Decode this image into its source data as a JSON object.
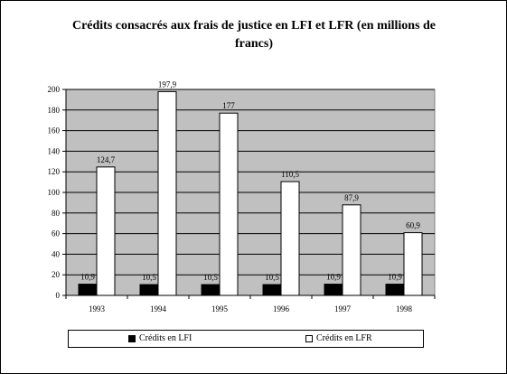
{
  "chart_data": {
    "type": "bar",
    "title": "Crédits consacrés aux frais de justice en LFI et LFR (en millions de francs)",
    "categories": [
      "1993",
      "1994",
      "1995",
      "1996",
      "1997",
      "1998"
    ],
    "series": [
      {
        "name": "Crédits en LFI",
        "values": [
          10.9,
          10.5,
          10.5,
          10.5,
          10.9,
          10.9
        ],
        "labels": [
          "10,9",
          "10,5",
          "10,5",
          "10,5",
          "10,9",
          "10,9"
        ],
        "color": "#000000"
      },
      {
        "name": "Crédits en LFR",
        "values": [
          124.7,
          197.9,
          177,
          110.5,
          87.9,
          60.9
        ],
        "labels": [
          "124,7",
          "197,9",
          "177",
          "110,5",
          "87,9",
          "60,9"
        ],
        "color": "#ffffff"
      }
    ],
    "yticks": [
      "0",
      "20",
      "40",
      "60",
      "80",
      "100",
      "120",
      "140",
      "160",
      "180",
      "200"
    ],
    "ylim": [
      0,
      200
    ],
    "grid": true,
    "plot_background": "#c0c0c0",
    "legend_position": "bottom"
  }
}
